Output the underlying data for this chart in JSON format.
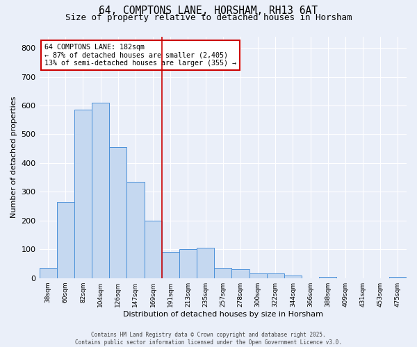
{
  "title1": "64, COMPTONS LANE, HORSHAM, RH13 6AT",
  "title2": "Size of property relative to detached houses in Horsham",
  "xlabel": "Distribution of detached houses by size in Horsham",
  "ylabel": "Number of detached properties",
  "categories": [
    "38sqm",
    "60sqm",
    "82sqm",
    "104sqm",
    "126sqm",
    "147sqm",
    "169sqm",
    "191sqm",
    "213sqm",
    "235sqm",
    "257sqm",
    "278sqm",
    "300sqm",
    "322sqm",
    "344sqm",
    "366sqm",
    "388sqm",
    "409sqm",
    "431sqm",
    "453sqm",
    "475sqm"
  ],
  "values": [
    35,
    265,
    585,
    610,
    455,
    335,
    200,
    90,
    100,
    105,
    35,
    30,
    15,
    15,
    10,
    0,
    5,
    0,
    0,
    0,
    5
  ],
  "bar_color": "#c5d8f0",
  "bar_edge_color": "#4a90d9",
  "vline_x_index": 7,
  "vline_color": "#cc0000",
  "annotation_text": "64 COMPTONS LANE: 182sqm\n← 87% of detached houses are smaller (2,405)\n13% of semi-detached houses are larger (355) →",
  "annotation_box_color": "#ffffff",
  "annotation_box_edge": "#cc0000",
  "annotation_fontsize": 7.2,
  "ylim": [
    0,
    840
  ],
  "yticks": [
    0,
    100,
    200,
    300,
    400,
    500,
    600,
    700,
    800
  ],
  "background_color": "#eaeff9",
  "footer1": "Contains HM Land Registry data © Crown copyright and database right 2025.",
  "footer2": "Contains public sector information licensed under the Open Government Licence v3.0.",
  "title_fontsize": 10.5,
  "subtitle_fontsize": 9
}
